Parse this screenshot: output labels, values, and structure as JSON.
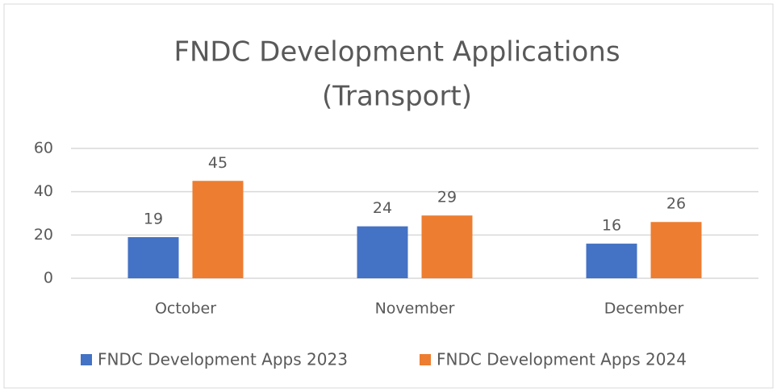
{
  "chart_data": {
    "type": "bar",
    "title": [
      "FNDC Development Applications",
      "(Transport)"
    ],
    "categories": [
      "October",
      "November",
      "December"
    ],
    "series": [
      {
        "name": "FNDC Development Apps 2023",
        "color": "#4472c4",
        "values": [
          19,
          24,
          16
        ]
      },
      {
        "name": "FNDC Development Apps 2024",
        "color": "#ed7d31",
        "values": [
          45,
          29,
          26
        ]
      }
    ],
    "ylim": [
      0,
      60
    ],
    "yticks": [
      0,
      20,
      40,
      60
    ],
    "grid": true,
    "legend": "bottom"
  }
}
